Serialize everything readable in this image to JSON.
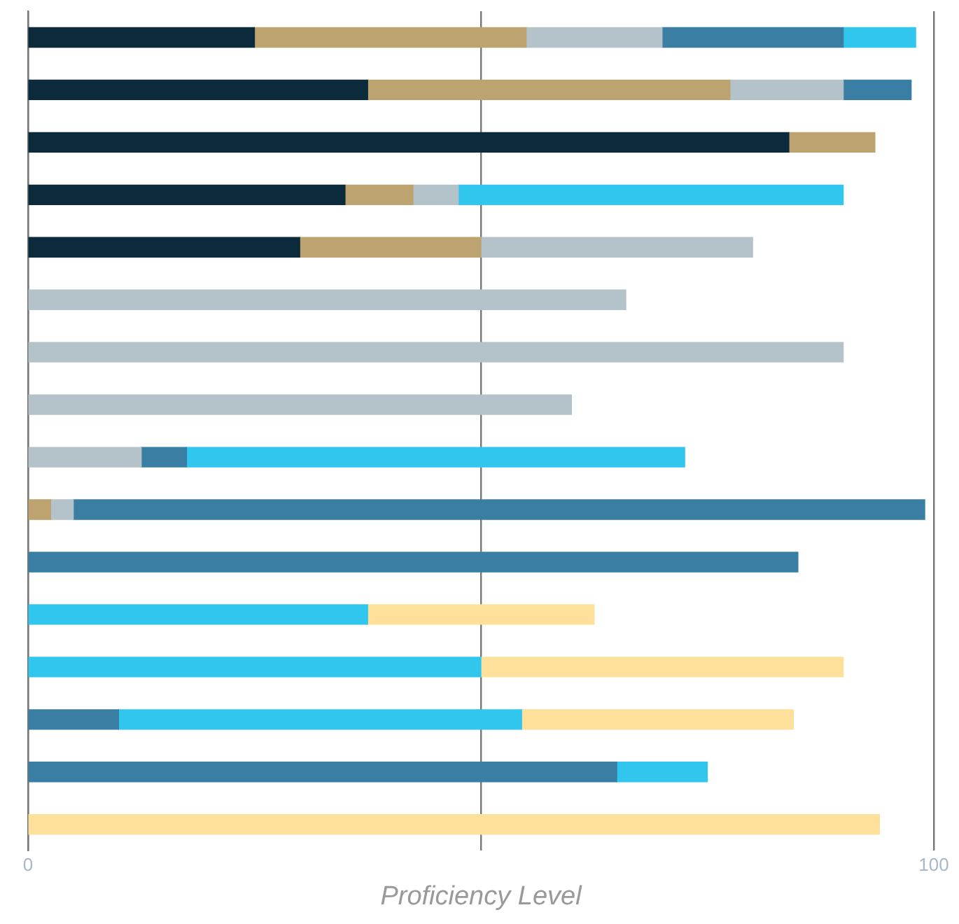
{
  "chart_data": {
    "type": "bar",
    "orientation": "horizontal",
    "stacked": true,
    "xlabel": "Proficiency Level",
    "categories": [
      null,
      null,
      null,
      null,
      null,
      null,
      null,
      null,
      null,
      null,
      null,
      null,
      null,
      null,
      null,
      null
    ],
    "series": [
      {
        "color": "#0b2b3d",
        "values": [
          25,
          37.5,
          84,
          35,
          30,
          null,
          null,
          null,
          null,
          null,
          null,
          null,
          null,
          null,
          null,
          null
        ]
      },
      {
        "color": "#bda36f",
        "values": [
          30,
          40,
          9.5,
          7.5,
          20,
          null,
          null,
          null,
          null,
          2.5,
          null,
          null,
          null,
          null,
          null,
          null
        ]
      },
      {
        "color": "#b4c3c9",
        "values": [
          15,
          12.5,
          null,
          5,
          30,
          66,
          90,
          60,
          12.5,
          2.5,
          null,
          null,
          null,
          null,
          null,
          null
        ]
      },
      {
        "color": "#3a7fa3",
        "values": [
          20,
          7.5,
          null,
          null,
          null,
          null,
          null,
          null,
          5,
          94,
          85,
          null,
          null,
          10,
          65,
          null
        ]
      },
      {
        "color": "#30c6ee",
        "values": [
          8,
          null,
          null,
          42.5,
          null,
          null,
          null,
          null,
          55,
          null,
          null,
          37.5,
          50,
          44.5,
          10,
          null
        ]
      },
      {
        "color": "#fde19a",
        "values": [
          null,
          null,
          null,
          null,
          null,
          null,
          null,
          null,
          null,
          null,
          null,
          25,
          40,
          30,
          null,
          94
        ]
      }
    ],
    "xlim": [
      0,
      100
    ],
    "xticks": [
      0,
      {
        "value": 50,
        "label": null
      },
      100
    ],
    "grid": "x",
    "tick_labels": "x",
    "legend": false
  }
}
